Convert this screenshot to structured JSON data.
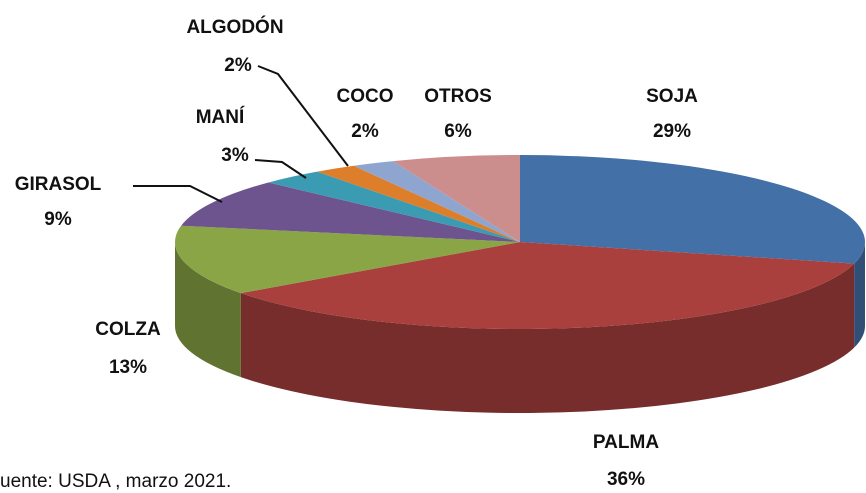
{
  "chart_data": {
    "type": "pie",
    "categories": [
      "SOJA",
      "PALMA",
      "COLZA",
      "GIRASOL",
      "MANÍ",
      "ALGODÓN",
      "COCO",
      "OTROS"
    ],
    "values": [
      29,
      36,
      13,
      9,
      3,
      2,
      2,
      6
    ],
    "value_labels": [
      "29%",
      "36%",
      "13%",
      "9%",
      "3%",
      "2%",
      "2%",
      "6%"
    ],
    "colors": [
      "#4470a8",
      "#a9403d",
      "#89a545",
      "#6e548f",
      "#3a9bb3",
      "#dd7e2b",
      "#8ea6cf",
      "#cc8e8d"
    ],
    "note": "uente: USDA , marzo 2021."
  }
}
